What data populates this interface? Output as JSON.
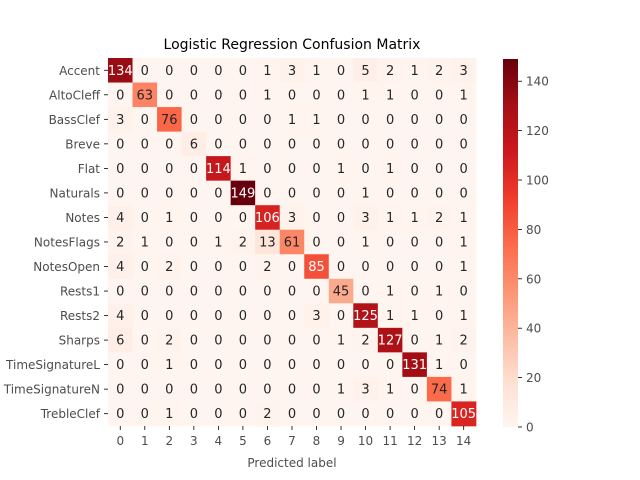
{
  "chart_data": {
    "type": "heatmap",
    "title": "Logistic Regression Confusion Matrix",
    "xlabel": "Predicted label",
    "ylabel": "",
    "row_labels": [
      "Accent",
      "AltoCleff",
      "BassClef",
      "Breve",
      "Flat",
      "Naturals",
      "Notes",
      "NotesFlags",
      "NotesOpen",
      "Rests1",
      "Rests2",
      "Sharps",
      "TimeSignatureL",
      "TimeSignatureN",
      "TrebleClef"
    ],
    "col_labels": [
      "0",
      "1",
      "2",
      "3",
      "4",
      "5",
      "6",
      "7",
      "8",
      "9",
      "10",
      "11",
      "12",
      "13",
      "14"
    ],
    "matrix": [
      [
        134,
        0,
        0,
        0,
        0,
        0,
        1,
        3,
        1,
        0,
        5,
        2,
        1,
        2,
        3
      ],
      [
        0,
        63,
        0,
        0,
        0,
        0,
        1,
        0,
        0,
        0,
        1,
        1,
        0,
        0,
        1
      ],
      [
        3,
        0,
        76,
        0,
        0,
        0,
        0,
        1,
        1,
        0,
        0,
        0,
        0,
        0,
        0
      ],
      [
        0,
        0,
        0,
        6,
        0,
        0,
        0,
        0,
        0,
        0,
        0,
        0,
        0,
        0,
        0
      ],
      [
        0,
        0,
        0,
        0,
        114,
        1,
        0,
        0,
        0,
        1,
        0,
        1,
        0,
        0,
        0
      ],
      [
        0,
        0,
        0,
        0,
        0,
        149,
        0,
        0,
        0,
        0,
        1,
        0,
        0,
        0,
        0
      ],
      [
        4,
        0,
        1,
        0,
        0,
        0,
        106,
        3,
        0,
        0,
        3,
        1,
        1,
        2,
        1
      ],
      [
        2,
        1,
        0,
        0,
        1,
        2,
        13,
        61,
        0,
        0,
        1,
        0,
        0,
        0,
        1
      ],
      [
        4,
        0,
        2,
        0,
        0,
        0,
        2,
        0,
        85,
        0,
        0,
        0,
        0,
        0,
        1
      ],
      [
        0,
        0,
        0,
        0,
        0,
        0,
        0,
        0,
        0,
        45,
        0,
        1,
        0,
        1,
        0
      ],
      [
        4,
        0,
        0,
        0,
        0,
        0,
        0,
        0,
        3,
        0,
        125,
        1,
        1,
        0,
        1
      ],
      [
        6,
        0,
        2,
        0,
        0,
        0,
        0,
        0,
        0,
        1,
        2,
        127,
        0,
        1,
        2
      ],
      [
        0,
        0,
        1,
        0,
        0,
        0,
        0,
        0,
        0,
        0,
        0,
        0,
        131,
        1,
        0
      ],
      [
        0,
        0,
        0,
        0,
        0,
        0,
        0,
        0,
        0,
        1,
        3,
        1,
        0,
        74,
        1
      ],
      [
        0,
        0,
        1,
        0,
        0,
        0,
        2,
        0,
        0,
        0,
        0,
        0,
        0,
        0,
        105
      ]
    ],
    "colorbar": {
      "ticks": [
        0,
        20,
        40,
        60,
        80,
        100,
        120,
        140
      ],
      "range": [
        0,
        149
      ],
      "colormap": "Reds"
    },
    "grid": false,
    "legend": "colorbar-right"
  }
}
